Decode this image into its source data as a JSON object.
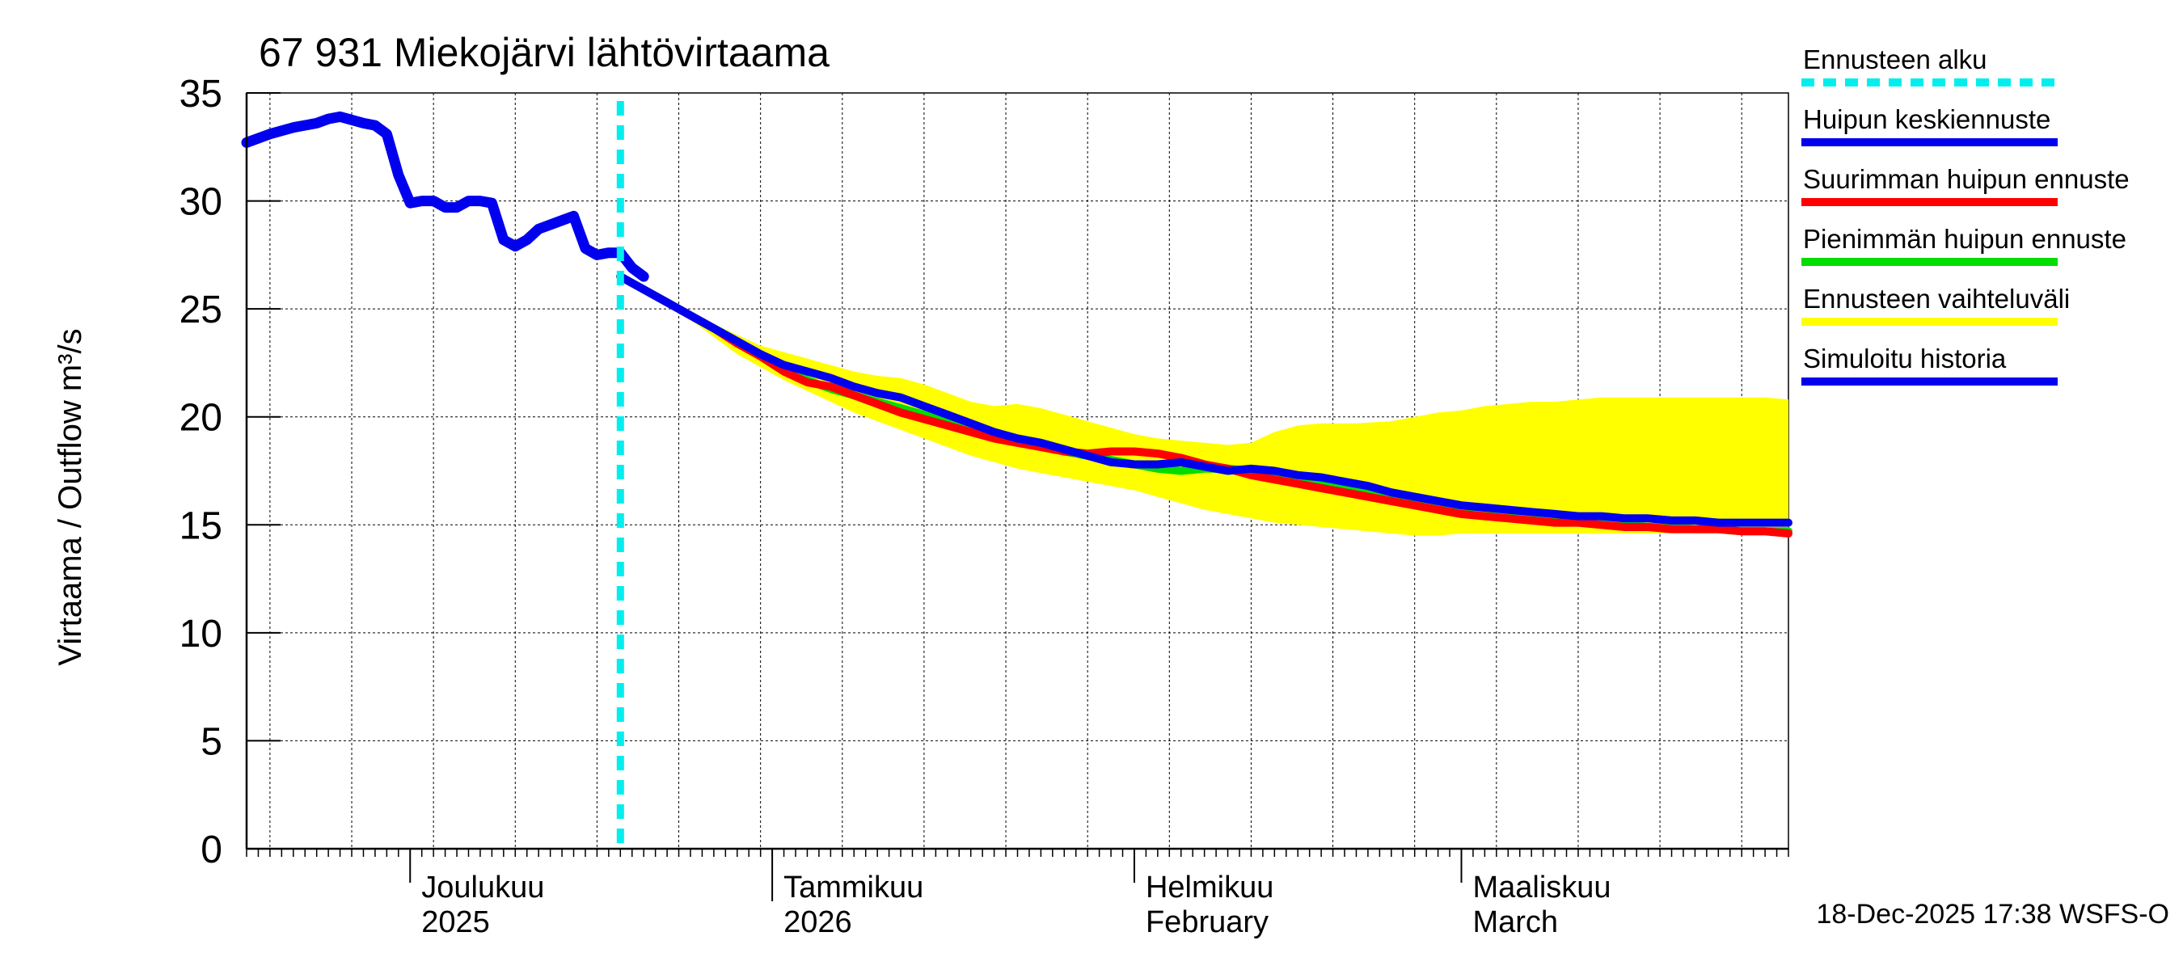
{
  "chart_data": {
    "type": "line",
    "title": "67 931 Miekojärvi lähtövirtaama",
    "ylabel": "Virtaama / Outflow    m³/s",
    "ylim": [
      0,
      35
    ],
    "yticks": [
      0,
      5,
      10,
      15,
      20,
      25,
      30,
      35
    ],
    "xlim": [
      0,
      132
    ],
    "grid": true,
    "month_labels": [
      {
        "day": 14,
        "line1": "Joulukuu",
        "line2": "2025"
      },
      {
        "day": 45,
        "line1": "Tammikuu",
        "line2": "2026"
      },
      {
        "day": 76,
        "line1": "Helmikuu",
        "line2": "February"
      },
      {
        "day": 104,
        "line1": "Maaliskuu",
        "line2": "March"
      }
    ],
    "forecast_start_day": 32,
    "series": [
      {
        "name": "Ennusteen vaihteluväli",
        "color": "#ffff00",
        "kind": "band",
        "upper": [
          [
            32,
            26.5
          ],
          [
            35,
            25.6
          ],
          [
            38,
            24.8
          ],
          [
            40,
            24.3
          ],
          [
            42,
            23.8
          ],
          [
            44,
            23.3
          ],
          [
            46,
            23.0
          ],
          [
            48,
            22.7
          ],
          [
            50,
            22.4
          ],
          [
            52,
            22.1
          ],
          [
            54,
            21.9
          ],
          [
            56,
            21.8
          ],
          [
            58,
            21.5
          ],
          [
            60,
            21.1
          ],
          [
            62,
            20.7
          ],
          [
            64,
            20.5
          ],
          [
            66,
            20.6
          ],
          [
            68,
            20.4
          ],
          [
            70,
            20.1
          ],
          [
            72,
            19.8
          ],
          [
            74,
            19.5
          ],
          [
            76,
            19.2
          ],
          [
            78,
            19.0
          ],
          [
            80,
            18.9
          ],
          [
            82,
            18.8
          ],
          [
            84,
            18.7
          ],
          [
            86,
            18.8
          ],
          [
            88,
            19.3
          ],
          [
            90,
            19.6
          ],
          [
            92,
            19.7
          ],
          [
            95,
            19.7
          ],
          [
            98,
            19.8
          ],
          [
            100,
            20.0
          ],
          [
            102,
            20.2
          ],
          [
            104,
            20.3
          ],
          [
            106,
            20.5
          ],
          [
            108,
            20.6
          ],
          [
            110,
            20.7
          ],
          [
            112,
            20.7
          ],
          [
            114,
            20.8
          ],
          [
            116,
            20.9
          ],
          [
            118,
            20.9
          ],
          [
            120,
            20.9
          ],
          [
            122,
            20.9
          ],
          [
            124,
            20.9
          ],
          [
            126,
            20.9
          ],
          [
            128,
            20.9
          ],
          [
            130,
            20.9
          ],
          [
            132,
            20.8
          ]
        ],
        "lower": [
          [
            32,
            26.5
          ],
          [
            35,
            25.5
          ],
          [
            38,
            24.5
          ],
          [
            40,
            23.7
          ],
          [
            42,
            22.9
          ],
          [
            44,
            22.3
          ],
          [
            46,
            21.7
          ],
          [
            48,
            21.2
          ],
          [
            50,
            20.7
          ],
          [
            52,
            20.2
          ],
          [
            54,
            19.8
          ],
          [
            56,
            19.4
          ],
          [
            58,
            19.0
          ],
          [
            60,
            18.6
          ],
          [
            62,
            18.2
          ],
          [
            64,
            17.9
          ],
          [
            66,
            17.6
          ],
          [
            68,
            17.4
          ],
          [
            70,
            17.2
          ],
          [
            72,
            17.0
          ],
          [
            74,
            16.8
          ],
          [
            76,
            16.6
          ],
          [
            78,
            16.3
          ],
          [
            80,
            16.0
          ],
          [
            82,
            15.7
          ],
          [
            84,
            15.5
          ],
          [
            86,
            15.3
          ],
          [
            88,
            15.1
          ],
          [
            90,
            15.0
          ],
          [
            92,
            14.9
          ],
          [
            94,
            14.8
          ],
          [
            96,
            14.7
          ],
          [
            98,
            14.6
          ],
          [
            100,
            14.5
          ],
          [
            102,
            14.5
          ],
          [
            104,
            14.6
          ],
          [
            106,
            14.6
          ],
          [
            108,
            14.6
          ],
          [
            110,
            14.6
          ],
          [
            112,
            14.6
          ],
          [
            114,
            14.6
          ],
          [
            116,
            14.6
          ],
          [
            118,
            14.6
          ],
          [
            120,
            14.6
          ],
          [
            122,
            14.6
          ],
          [
            124,
            14.6
          ],
          [
            126,
            14.6
          ],
          [
            128,
            14.6
          ],
          [
            130,
            14.6
          ],
          [
            132,
            14.6
          ]
        ]
      },
      {
        "name": "Pienimmän huipun ennuste",
        "color": "#00dd00",
        "kind": "line",
        "points": [
          [
            32,
            26.5
          ],
          [
            34,
            25.9
          ],
          [
            36,
            25.3
          ],
          [
            38,
            24.7
          ],
          [
            40,
            24.1
          ],
          [
            42,
            23.5
          ],
          [
            44,
            22.9
          ],
          [
            46,
            22.3
          ],
          [
            48,
            21.7
          ],
          [
            50,
            21.3
          ],
          [
            52,
            21.0
          ],
          [
            54,
            20.7
          ],
          [
            56,
            20.4
          ],
          [
            58,
            20.1
          ],
          [
            60,
            19.8
          ],
          [
            62,
            19.5
          ],
          [
            64,
            19.2
          ],
          [
            66,
            18.9
          ],
          [
            68,
            18.7
          ],
          [
            70,
            18.4
          ],
          [
            72,
            18.2
          ],
          [
            74,
            18.0
          ],
          [
            76,
            17.8
          ],
          [
            78,
            17.6
          ],
          [
            80,
            17.5
          ],
          [
            82,
            17.6
          ],
          [
            84,
            17.6
          ],
          [
            86,
            17.5
          ],
          [
            88,
            17.4
          ],
          [
            90,
            17.2
          ],
          [
            92,
            17.0
          ],
          [
            94,
            16.8
          ],
          [
            96,
            16.6
          ],
          [
            98,
            16.4
          ],
          [
            100,
            16.2
          ],
          [
            102,
            16.0
          ],
          [
            104,
            15.8
          ],
          [
            106,
            15.6
          ],
          [
            108,
            15.5
          ],
          [
            110,
            15.4
          ],
          [
            112,
            15.3
          ],
          [
            114,
            15.2
          ],
          [
            116,
            15.1
          ],
          [
            118,
            15.0
          ],
          [
            120,
            14.9
          ],
          [
            122,
            14.9
          ],
          [
            124,
            14.8
          ],
          [
            126,
            14.8
          ],
          [
            128,
            14.7
          ],
          [
            130,
            14.7
          ],
          [
            132,
            14.7
          ]
        ]
      },
      {
        "name": "Suurimman huipun ennuste",
        "color": "#ff0000",
        "kind": "line",
        "points": [
          [
            32,
            26.5
          ],
          [
            34,
            25.9
          ],
          [
            36,
            25.3
          ],
          [
            38,
            24.7
          ],
          [
            40,
            24.1
          ],
          [
            42,
            23.4
          ],
          [
            44,
            22.8
          ],
          [
            46,
            22.1
          ],
          [
            48,
            21.6
          ],
          [
            50,
            21.4
          ],
          [
            52,
            21.0
          ],
          [
            54,
            20.6
          ],
          [
            56,
            20.2
          ],
          [
            58,
            19.9
          ],
          [
            60,
            19.6
          ],
          [
            62,
            19.3
          ],
          [
            64,
            19.0
          ],
          [
            66,
            18.8
          ],
          [
            68,
            18.6
          ],
          [
            70,
            18.4
          ],
          [
            72,
            18.3
          ],
          [
            74,
            18.4
          ],
          [
            76,
            18.4
          ],
          [
            78,
            18.3
          ],
          [
            80,
            18.1
          ],
          [
            82,
            17.8
          ],
          [
            84,
            17.6
          ],
          [
            86,
            17.3
          ],
          [
            88,
            17.1
          ],
          [
            90,
            16.9
          ],
          [
            92,
            16.7
          ],
          [
            94,
            16.5
          ],
          [
            96,
            16.3
          ],
          [
            98,
            16.1
          ],
          [
            100,
            15.9
          ],
          [
            102,
            15.7
          ],
          [
            104,
            15.5
          ],
          [
            106,
            15.4
          ],
          [
            108,
            15.3
          ],
          [
            110,
            15.2
          ],
          [
            112,
            15.1
          ],
          [
            114,
            15.1
          ],
          [
            116,
            15.0
          ],
          [
            118,
            14.9
          ],
          [
            120,
            14.9
          ],
          [
            122,
            14.8
          ],
          [
            124,
            14.8
          ],
          [
            126,
            14.8
          ],
          [
            128,
            14.7
          ],
          [
            130,
            14.7
          ],
          [
            132,
            14.6
          ]
        ]
      },
      {
        "name": "Huipun keskiennuste",
        "color": "#0000ee",
        "kind": "line",
        "points": [
          [
            32,
            26.5
          ],
          [
            34,
            25.9
          ],
          [
            36,
            25.3
          ],
          [
            38,
            24.7
          ],
          [
            40,
            24.1
          ],
          [
            42,
            23.5
          ],
          [
            44,
            22.9
          ],
          [
            46,
            22.4
          ],
          [
            48,
            22.1
          ],
          [
            50,
            21.8
          ],
          [
            52,
            21.4
          ],
          [
            54,
            21.1
          ],
          [
            56,
            20.9
          ],
          [
            58,
            20.5
          ],
          [
            60,
            20.1
          ],
          [
            62,
            19.7
          ],
          [
            64,
            19.3
          ],
          [
            66,
            19.0
          ],
          [
            68,
            18.8
          ],
          [
            70,
            18.5
          ],
          [
            72,
            18.2
          ],
          [
            74,
            17.9
          ],
          [
            76,
            17.8
          ],
          [
            78,
            17.8
          ],
          [
            80,
            17.9
          ],
          [
            82,
            17.7
          ],
          [
            84,
            17.5
          ],
          [
            86,
            17.6
          ],
          [
            88,
            17.5
          ],
          [
            90,
            17.3
          ],
          [
            92,
            17.2
          ],
          [
            94,
            17.0
          ],
          [
            96,
            16.8
          ],
          [
            98,
            16.5
          ],
          [
            100,
            16.3
          ],
          [
            102,
            16.1
          ],
          [
            104,
            15.9
          ],
          [
            106,
            15.8
          ],
          [
            108,
            15.7
          ],
          [
            110,
            15.6
          ],
          [
            112,
            15.5
          ],
          [
            114,
            15.4
          ],
          [
            116,
            15.4
          ],
          [
            118,
            15.3
          ],
          [
            120,
            15.3
          ],
          [
            122,
            15.2
          ],
          [
            124,
            15.2
          ],
          [
            126,
            15.1
          ],
          [
            128,
            15.1
          ],
          [
            130,
            15.1
          ],
          [
            132,
            15.1
          ]
        ]
      },
      {
        "name": "Simuloitu historia",
        "color": "#0000ee",
        "kind": "line",
        "points": [
          [
            0,
            32.7
          ],
          [
            2,
            33.1
          ],
          [
            4,
            33.4
          ],
          [
            6,
            33.6
          ],
          [
            7,
            33.8
          ],
          [
            8,
            33.9
          ],
          [
            10,
            33.6
          ],
          [
            11,
            33.5
          ],
          [
            12,
            33.1
          ],
          [
            13,
            31.2
          ],
          [
            14,
            29.9
          ],
          [
            15,
            30.0
          ],
          [
            16,
            30.0
          ],
          [
            17,
            29.7
          ],
          [
            18,
            29.7
          ],
          [
            19,
            30.0
          ],
          [
            20,
            30.0
          ],
          [
            21,
            29.9
          ],
          [
            22,
            28.2
          ],
          [
            23,
            27.9
          ],
          [
            24,
            28.2
          ],
          [
            25,
            28.7
          ],
          [
            26,
            28.9
          ],
          [
            27,
            29.1
          ],
          [
            28,
            29.3
          ],
          [
            29,
            27.8
          ],
          [
            30,
            27.5
          ],
          [
            31,
            27.6
          ],
          [
            32,
            27.6
          ],
          [
            33,
            26.9
          ],
          [
            34,
            26.5
          ]
        ]
      }
    ]
  },
  "legend": [
    {
      "label": "Ennusteen alku",
      "color": "#00eeee",
      "style": "dashed"
    },
    {
      "label": "Huipun keskiennuste",
      "color": "#0000ee",
      "style": "solid"
    },
    {
      "label": "Suurimman huipun ennuste",
      "color": "#ff0000",
      "style": "solid"
    },
    {
      "label": "Pienimmän huipun ennuste",
      "color": "#00dd00",
      "style": "solid"
    },
    {
      "label": "Ennusteen vaihteluväli",
      "color": "#ffff00",
      "style": "solid"
    },
    {
      "label": "Simuloitu historia",
      "color": "#0000ee",
      "style": "solid"
    }
  ],
  "footer": "18-Dec-2025 17:38 WSFS-O"
}
